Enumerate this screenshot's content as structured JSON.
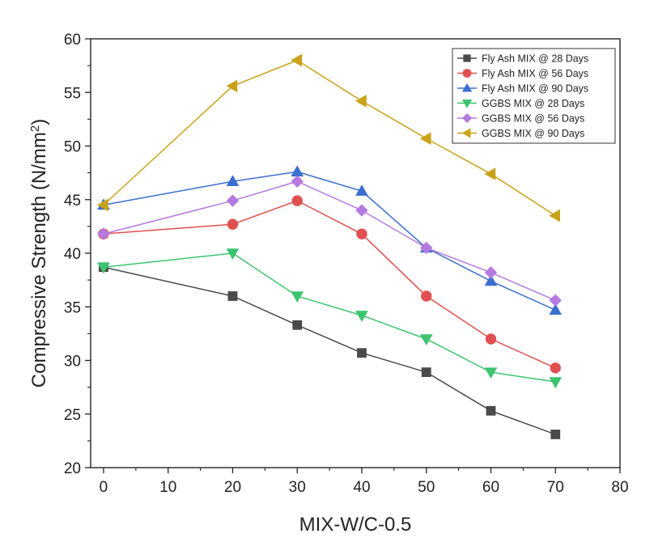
{
  "chart_data": {
    "type": "line",
    "xlabel": "MIX-W/C-0.5",
    "ylabel_main": "Compressive Strength (N/mm",
    "ylabel_sup": "2",
    "ylabel_close": ")",
    "xlim": [
      -2,
      80
    ],
    "ylim": [
      20,
      60
    ],
    "xticks": [
      "0",
      "10",
      "20",
      "30",
      "40",
      "50",
      "60",
      "70",
      "80"
    ],
    "yticks": [
      "20",
      "25",
      "30",
      "35",
      "40",
      "45",
      "50",
      "55",
      "60"
    ],
    "legend_position": "top-right",
    "x": [
      0,
      20,
      30,
      40,
      50,
      60,
      70
    ],
    "series": [
      {
        "name": "Fly Ash MIX @ 28 Days",
        "color": "#4a4a4a",
        "marker": "square",
        "values": [
          38.7,
          36.0,
          33.3,
          30.7,
          28.9,
          25.3,
          23.1
        ]
      },
      {
        "name": "Fly Ash MIX @ 56 Days",
        "color": "#e05050",
        "marker": "circle",
        "values": [
          41.8,
          42.7,
          44.9,
          41.8,
          36.0,
          32.0,
          29.3
        ]
      },
      {
        "name": "Fly Ash MIX @ 90 Days",
        "color": "#3a6fd0",
        "marker": "triangle-up",
        "values": [
          44.5,
          46.7,
          47.6,
          45.8,
          40.5,
          37.4,
          34.7
        ]
      },
      {
        "name": "GGBS MIX @ 28 Days",
        "color": "#3cc46e",
        "marker": "triangle-down",
        "values": [
          38.7,
          40.0,
          36.0,
          34.2,
          32.0,
          28.9,
          28.0
        ]
      },
      {
        "name": "GGBS MIX @ 56 Days",
        "color": "#b57ae0",
        "marker": "diamond",
        "values": [
          41.8,
          44.9,
          46.7,
          44.0,
          40.5,
          38.2,
          35.6
        ]
      },
      {
        "name": "GGBS MIX @ 90 Days",
        "color": "#c9a21a",
        "marker": "triangle-left",
        "values": [
          44.5,
          55.6,
          58.0,
          54.2,
          50.7,
          47.4,
          43.5
        ]
      }
    ]
  }
}
